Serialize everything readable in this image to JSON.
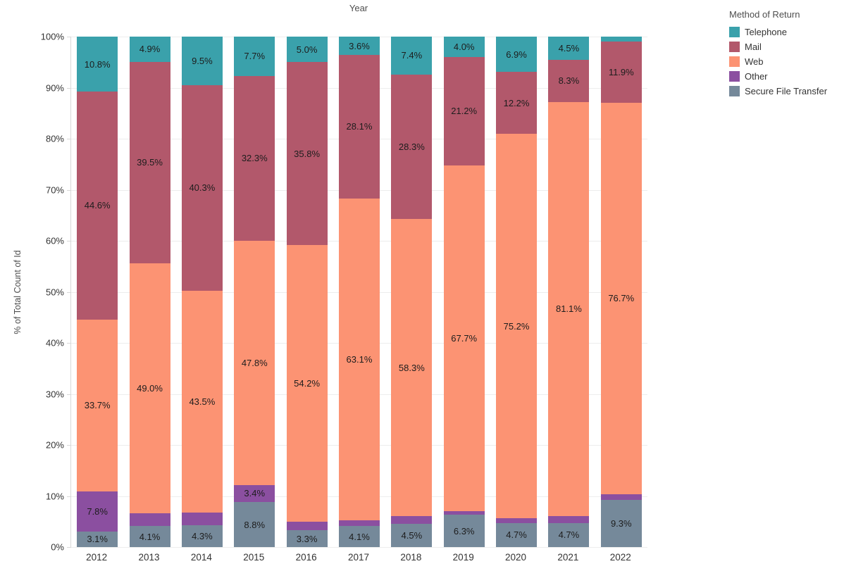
{
  "title": "Year",
  "y_axis_title": "% of Total Count of Id",
  "y_ticks": [
    "0%",
    "10%",
    "20%",
    "30%",
    "40%",
    "50%",
    "60%",
    "70%",
    "80%",
    "90%",
    "100%"
  ],
  "legend": {
    "title": "Method of Return",
    "items": [
      {
        "label": "Telephone",
        "color": "#3aa1ab"
      },
      {
        "label": "Mail",
        "color": "#b2586b"
      },
      {
        "label": "Web",
        "color": "#fc9373"
      },
      {
        "label": "Other",
        "color": "#8b4fa0"
      },
      {
        "label": "Secure File Transfer",
        "color": "#75899a"
      }
    ]
  },
  "chart_data": {
    "type": "bar",
    "subtype": "stacked-percent",
    "title": "Year",
    "xlabel": "Year",
    "ylabel": "% of Total Count of Id",
    "ylim": [
      0,
      100
    ],
    "grid": true,
    "legend_position": "right",
    "legend_title": "Method of Return",
    "stack_order_top_to_bottom": [
      "Telephone",
      "Mail",
      "Web",
      "Other",
      "Secure File Transfer"
    ],
    "categories": [
      "2012",
      "2013",
      "2014",
      "2015",
      "2016",
      "2017",
      "2018",
      "2019",
      "2020",
      "2021",
      "2022"
    ],
    "series": [
      {
        "name": "Telephone",
        "color": "#3aa1ab",
        "values": [
          10.8,
          4.9,
          9.5,
          7.7,
          5.0,
          3.6,
          7.4,
          4.0,
          6.9,
          4.5,
          1.0
        ],
        "labels": [
          "10.8%",
          "4.9%",
          "9.5%",
          "7.7%",
          "5.0%",
          "3.6%",
          "7.4%",
          "4.0%",
          "6.9%",
          "4.5%",
          ""
        ]
      },
      {
        "name": "Mail",
        "color": "#b2586b",
        "values": [
          44.6,
          39.5,
          40.3,
          32.3,
          35.8,
          28.1,
          28.3,
          21.2,
          12.2,
          8.3,
          11.9
        ],
        "labels": [
          "44.6%",
          "39.5%",
          "40.3%",
          "32.3%",
          "35.8%",
          "28.1%",
          "28.3%",
          "21.2%",
          "12.2%",
          "8.3%",
          "11.9%"
        ]
      },
      {
        "name": "Web",
        "color": "#fc9373",
        "values": [
          33.7,
          49.0,
          43.5,
          47.8,
          54.2,
          63.1,
          58.3,
          67.7,
          75.2,
          81.1,
          76.7
        ],
        "labels": [
          "33.7%",
          "49.0%",
          "43.5%",
          "47.8%",
          "54.2%",
          "63.1%",
          "58.3%",
          "67.7%",
          "75.2%",
          "81.1%",
          "76.7%"
        ]
      },
      {
        "name": "Other",
        "color": "#8b4fa0",
        "values": [
          7.8,
          2.5,
          2.4,
          3.4,
          1.7,
          1.1,
          1.5,
          0.8,
          1.0,
          1.4,
          1.1
        ],
        "labels": [
          "7.8%",
          "",
          "",
          "3.4%",
          "",
          "",
          "",
          "",
          "",
          "",
          ""
        ]
      },
      {
        "name": "Secure File Transfer",
        "color": "#75899a",
        "values": [
          3.1,
          4.1,
          4.3,
          8.8,
          3.3,
          4.1,
          4.5,
          6.3,
          4.7,
          4.7,
          9.3
        ],
        "labels": [
          "3.1%",
          "4.1%",
          "4.3%",
          "8.8%",
          "3.3%",
          "4.1%",
          "4.5%",
          "6.3%",
          "4.7%",
          "4.7%",
          "9.3%"
        ]
      }
    ]
  }
}
